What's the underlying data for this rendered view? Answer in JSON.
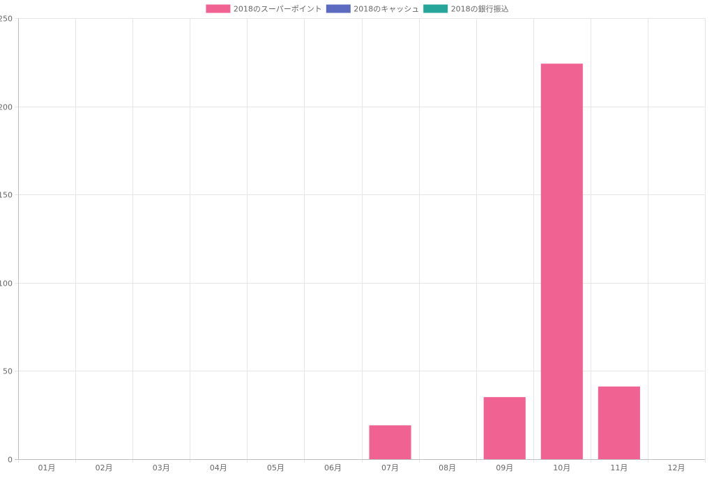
{
  "chart_data": {
    "type": "bar",
    "categories": [
      "01月",
      "02月",
      "03月",
      "04月",
      "05月",
      "06月",
      "07月",
      "08月",
      "09月",
      "10月",
      "11月",
      "12月"
    ],
    "series": [
      {
        "name": "2018のスーパーポイント",
        "color": "#f06292",
        "values": [
          0,
          0,
          0,
          0,
          0,
          0,
          19,
          0,
          35,
          224,
          41,
          0
        ]
      },
      {
        "name": "2018のキャッシュ",
        "color": "#5c6bc0",
        "values": [
          0,
          0,
          0,
          0,
          0,
          0,
          0,
          0,
          0,
          0,
          0,
          0
        ]
      },
      {
        "name": "2018の銀行振込",
        "color": "#26a69a",
        "values": [
          0,
          0,
          0,
          0,
          0,
          0,
          0,
          0,
          0,
          0,
          0,
          0
        ]
      }
    ],
    "stacked": true,
    "ylim": [
      0,
      250
    ],
    "yticks": [
      0,
      50,
      100,
      150,
      200,
      250
    ],
    "grid": true,
    "legend": "top-center",
    "title": "",
    "xlabel": "",
    "ylabel": ""
  }
}
